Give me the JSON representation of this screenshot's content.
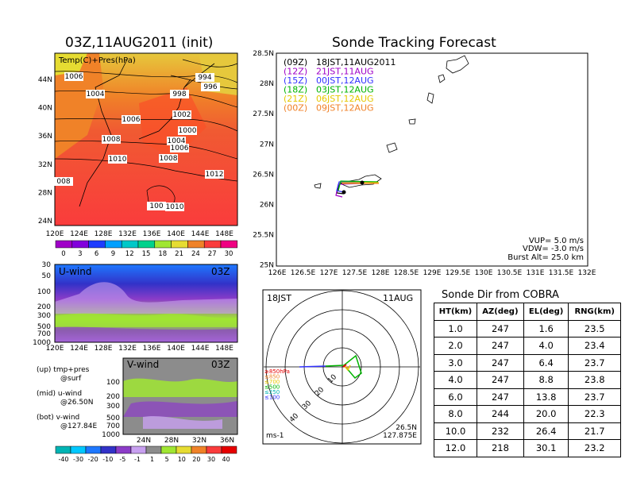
{
  "left": {
    "title": "03Z,11AUG2011 (init)",
    "map_label": "Temp(C)+Pres(hPa)",
    "lat_ticks": [
      "44N",
      "40N",
      "36N",
      "32N",
      "28N",
      "24N"
    ],
    "lon_ticks": [
      "120E",
      "124E",
      "128E",
      "132E",
      "136E",
      "140E",
      "144E",
      "148E"
    ],
    "isobars": [
      "1006",
      "1004",
      "994",
      "996",
      "998",
      "1006",
      "1000",
      "1002",
      "1008",
      "1004",
      "1006",
      "1010",
      "1008",
      "1012",
      "008",
      "1010",
      "100"
    ],
    "temp_colorbar": {
      "labels": [
        "0",
        "3",
        "6",
        "9",
        "12",
        "15",
        "18",
        "21",
        "24",
        "27",
        "30"
      ],
      "colors": [
        "#a000c8",
        "#8200dc",
        "#1e3cff",
        "#00a0ff",
        "#00c8c8",
        "#00d28c",
        "#a0e632",
        "#e6dc32",
        "#f08228",
        "#fa3c3c",
        "#f00082"
      ]
    },
    "u_panel": {
      "label": "U-wind",
      "time": "03Z",
      "p_ticks": [
        "30",
        "50",
        "100",
        "200",
        "300",
        "500",
        "700",
        "1000"
      ],
      "lon_ticks": [
        "120E",
        "124E",
        "128E",
        "132E",
        "136E",
        "140E",
        "144E",
        "148E"
      ]
    },
    "v_panel": {
      "label": "V-wind",
      "time": "03Z",
      "p_ticks": [
        "100",
        "200",
        "300",
        "500",
        "700",
        "1000"
      ],
      "lat_ticks": [
        "24N",
        "28N",
        "32N",
        "36N"
      ]
    },
    "legend_text": {
      "up": "(up) tmp+pres",
      "up2": "@surf",
      "mid": "(mid) u-wind",
      "mid2": "@26.50N",
      "bot": "(bot) v-wind",
      "bot2": "@127.84E"
    },
    "wind_colorbar": {
      "labels": [
        "-40",
        "-30",
        "-20",
        "-10",
        "-5",
        "-1",
        "1",
        "5",
        "10",
        "20",
        "30",
        "40"
      ],
      "colors": [
        "#00b4b4",
        "#00c8ff",
        "#1e78ff",
        "#3232c8",
        "#8c3cc8",
        "#c8a0f0",
        "#8c8c8c",
        "#a0e632",
        "#e6dc32",
        "#f08228",
        "#fa3c3c",
        "#e60000"
      ]
    }
  },
  "tracking": {
    "title": "Sonde Tracking Forecast",
    "lat_ticks": [
      "28.5N",
      "28N",
      "27.5N",
      "27N",
      "26.5N",
      "26N",
      "25.5N",
      "25N"
    ],
    "lon_ticks": [
      "126E",
      "126.5E",
      "127E",
      "127.5E",
      "128E",
      "128.5E",
      "129E",
      "129.5E",
      "130E",
      "130.5E",
      "131E",
      "131.5E",
      "132E"
    ],
    "legend": [
      {
        "code": "(09Z)",
        "time": "18JST,11AUG2011",
        "color": "#000000"
      },
      {
        "code": "(12Z)",
        "time": "21JST,11AUG",
        "color": "#a000c8"
      },
      {
        "code": "(15Z)",
        "time": "00JST,12AUG",
        "color": "#3232ff"
      },
      {
        "code": "(18Z)",
        "time": "03JST,12AUG",
        "color": "#00b400"
      },
      {
        "code": "(21Z)",
        "time": "06JST,12AUG",
        "color": "#e6c800"
      },
      {
        "code": "(00Z)",
        "time": "09JST,12AUG",
        "color": "#f08228"
      }
    ],
    "info": {
      "vup": "VUP= 5.0 m/s",
      "vdw": "VDW= -3.0 m/s",
      "burst": "Burst Alt= 25.0 km"
    }
  },
  "polar": {
    "time_label": "18JST",
    "date_label": "11AUG",
    "levels": [
      {
        "label": "≥850hPa",
        "color": "#e60000"
      },
      {
        "label": "≤850",
        "color": "#f08228"
      },
      {
        "label": "≤700",
        "color": "#e6c800"
      },
      {
        "label": "≤500",
        "color": "#00b400"
      },
      {
        "label": "≤250",
        "color": "#00b4b4"
      },
      {
        "label": "≤100",
        "color": "#3232ff"
      }
    ],
    "ring_labels": [
      "10",
      "20",
      "30",
      "40"
    ],
    "location": "26.5N",
    "location2": "127.875E",
    "unit": "ms-1"
  },
  "table": {
    "title": "Sonde Dir from COBRA",
    "headers": [
      "HT(km)",
      "AZ(deg)",
      "EL(deg)",
      "RNG(km)"
    ],
    "rows": [
      [
        "1.0",
        "247",
        "1.6",
        "23.5"
      ],
      [
        "2.0",
        "247",
        "4.0",
        "23.4"
      ],
      [
        "3.0",
        "247",
        "6.4",
        "23.7"
      ],
      [
        "4.0",
        "247",
        "8.8",
        "23.8"
      ],
      [
        "6.0",
        "247",
        "13.8",
        "23.7"
      ],
      [
        "8.0",
        "244",
        "20.0",
        "22.3"
      ],
      [
        "10.0",
        "232",
        "26.4",
        "21.7"
      ],
      [
        "12.0",
        "218",
        "30.1",
        "23.2"
      ]
    ]
  }
}
